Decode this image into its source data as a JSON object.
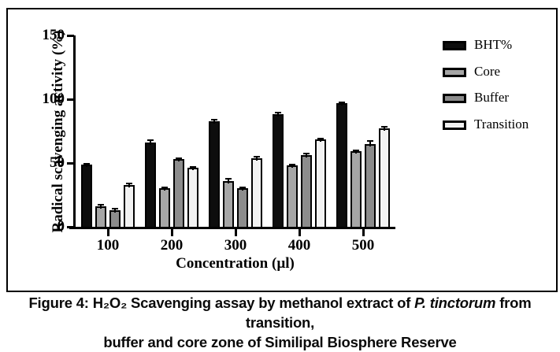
{
  "figure": {
    "background": "#ffffff",
    "border_color": "#000000",
    "caption": {
      "line1_prefix": "Figure 4: H₂O₂ Scavenging assay by methanol extract of ",
      "line1_italic": "P. tinctorum",
      "line1_suffix": " from transition,",
      "line2": "buffer and core zone of Similipal Biosphere Reserve"
    }
  },
  "chart_data": {
    "type": "bar",
    "title": "",
    "xlabel": "Concentration (µl)",
    "ylabel": "Radical scavenging activity (%)",
    "categories": [
      "100",
      "200",
      "300",
      "400",
      "500"
    ],
    "y_ticks": [
      "0",
      "50",
      "100",
      "150"
    ],
    "ylim": [
      0,
      150
    ],
    "grid": false,
    "legend_position": "right",
    "axis_color": "#000000",
    "error_bar_color": "#000000",
    "series": [
      {
        "name": "BHT%",
        "fill": "#0d0d0d",
        "values": [
          48.5,
          66,
          83,
          88.5,
          97
        ],
        "errors": [
          1,
          2,
          1,
          1.2,
          0.5
        ]
      },
      {
        "name": "Core",
        "fill": "#a6a6a6",
        "values": [
          16,
          30,
          36,
          48,
          59
        ],
        "errors": [
          1.2,
          0.8,
          1.6,
          1,
          1
        ]
      },
      {
        "name": "Buffer",
        "fill": "#8c8c8c",
        "values": [
          13,
          53,
          30,
          56,
          65
        ],
        "errors": [
          1.4,
          0.8,
          0.8,
          1.6,
          2
        ]
      },
      {
        "name": "Transition",
        "fill": "#f2f2f2",
        "values": [
          33,
          46,
          54,
          68.5,
          77
        ],
        "errors": [
          1.2,
          1,
          1.2,
          0.8,
          1.6
        ]
      }
    ]
  }
}
